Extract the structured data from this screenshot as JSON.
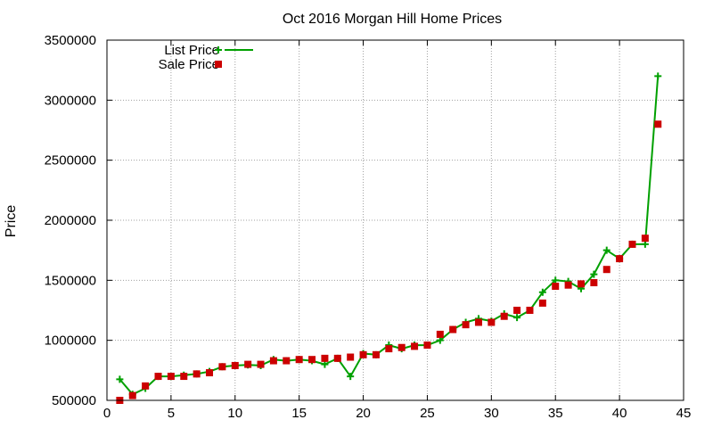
{
  "chart_data": {
    "type": "line",
    "title": "Oct 2016 Morgan Hill Home Prices",
    "xlabel": "",
    "ylabel": "Price",
    "xlim": [
      0,
      45
    ],
    "ylim": [
      500000,
      3500000
    ],
    "xticks": [
      0,
      5,
      10,
      15,
      20,
      25,
      30,
      35,
      40,
      45
    ],
    "yticks": [
      500000,
      1000000,
      1500000,
      2000000,
      2500000,
      3000000,
      3500000
    ],
    "xtick_labels": [
      "0",
      "5",
      "10",
      "15",
      "20",
      "25",
      "30",
      "35",
      "40",
      "45"
    ],
    "ytick_labels": [
      "500000",
      "1000000",
      "1500000",
      "2000000",
      "2500000",
      "3000000",
      "3500000"
    ],
    "grid": true,
    "legend_position": "top-left",
    "x": [
      1,
      2,
      3,
      4,
      5,
      6,
      7,
      8,
      9,
      10,
      11,
      12,
      13,
      14,
      15,
      16,
      17,
      18,
      19,
      20,
      21,
      22,
      23,
      24,
      25,
      26,
      27,
      28,
      29,
      30,
      31,
      32,
      33,
      34,
      35,
      36,
      37,
      38,
      39,
      40,
      41,
      42,
      43
    ],
    "series": [
      {
        "name": "List Price",
        "style": "line+cross",
        "color": "#00a000",
        "values": [
          675000,
          550000,
          600000,
          700000,
          700000,
          710000,
          720000,
          740000,
          780000,
          790000,
          795000,
          790000,
          840000,
          830000,
          840000,
          830000,
          800000,
          850000,
          700000,
          890000,
          880000,
          960000,
          930000,
          960000,
          960000,
          1000000,
          1090000,
          1150000,
          1180000,
          1160000,
          1220000,
          1190000,
          1250000,
          1400000,
          1500000,
          1490000,
          1430000,
          1550000,
          1750000,
          1680000,
          1800000,
          1800000,
          3200000
        ]
      },
      {
        "name": "Sale Price",
        "style": "square",
        "color": "#cc0000",
        "values": [
          500000,
          540000,
          620000,
          700000,
          700000,
          700000,
          720000,
          730000,
          780000,
          790000,
          800000,
          800000,
          830000,
          830000,
          840000,
          840000,
          850000,
          850000,
          860000,
          880000,
          880000,
          930000,
          940000,
          950000,
          960000,
          1050000,
          1090000,
          1130000,
          1150000,
          1150000,
          1200000,
          1250000,
          1250000,
          1310000,
          1450000,
          1460000,
          1470000,
          1480000,
          1590000,
          1680000,
          1800000,
          1850000,
          2800000
        ]
      }
    ]
  }
}
